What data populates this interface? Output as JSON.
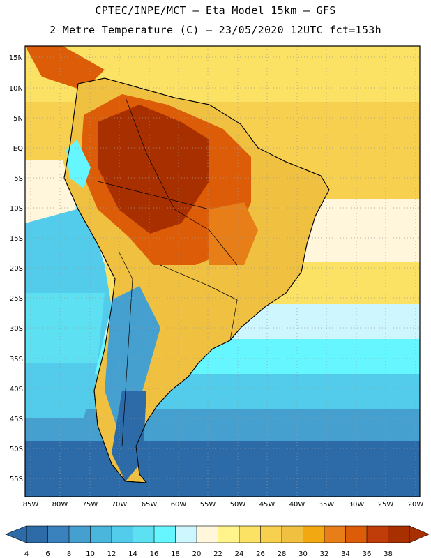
{
  "header": {
    "line1": "CPTEC/INPE/MCT –  Eta Model 15km – GFS",
    "line2": "2 Metre Temperature (C) – 23/05/2020 12UTC fct=153h"
  },
  "axes": {
    "lat_labels": [
      "15N",
      "10N",
      "5N",
      "EQ",
      "5S",
      "10S",
      "15S",
      "20S",
      "25S",
      "30S",
      "35S",
      "40S",
      "45S",
      "50S",
      "55S"
    ],
    "lon_labels": [
      "85W",
      "80W",
      "75W",
      "70W",
      "65W",
      "60W",
      "55W",
      "50W",
      "45W",
      "40W",
      "35W",
      "30W",
      "25W",
      "20W"
    ]
  },
  "colorbar": {
    "ticks": [
      "4",
      "6",
      "8",
      "10",
      "12",
      "14",
      "16",
      "18",
      "20",
      "22",
      "24",
      "26",
      "28",
      "30",
      "32",
      "34",
      "36",
      "38"
    ],
    "colors": [
      "#2c6aa8",
      "#3a82be",
      "#46a0cf",
      "#4bb6dc",
      "#52ccea",
      "#5ce0f2",
      "#66f6ff",
      "#cdf6ff",
      "#fff6dc",
      "#fff48c",
      "#fce264",
      "#f8d050",
      "#f0c040",
      "#f2a810",
      "#e87e18",
      "#dc5c08",
      "#c03c08",
      "#a83000"
    ]
  },
  "map": {
    "region": "South America",
    "lat_range": [
      -57,
      17
    ],
    "lon_range": [
      -86,
      -20
    ],
    "field": "2 Metre Temperature (C)"
  }
}
